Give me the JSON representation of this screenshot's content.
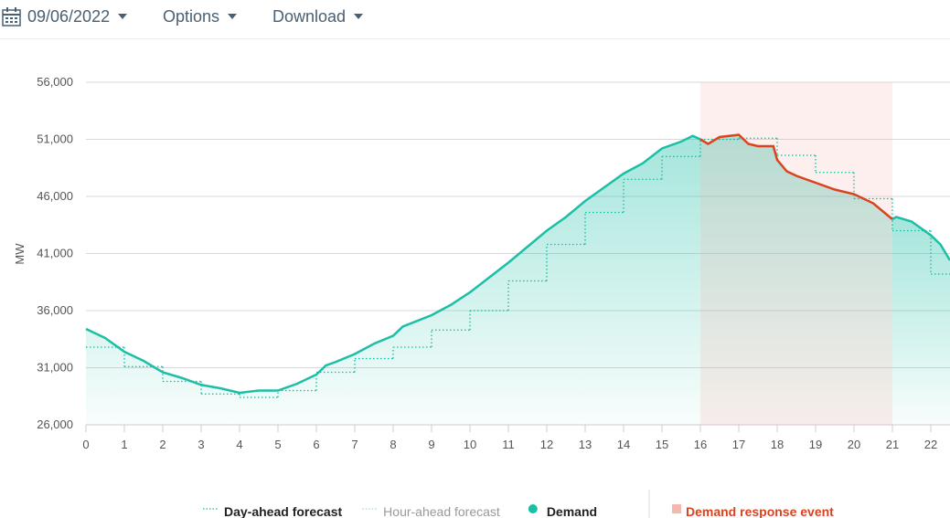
{
  "toolbar": {
    "date": "09/06/2022",
    "options": "Options",
    "download": "Download"
  },
  "chart_data": {
    "type": "line",
    "ylabel": "MW",
    "xlim": [
      0,
      22.5
    ],
    "xticks": [
      0,
      1,
      2,
      3,
      4,
      5,
      6,
      7,
      8,
      9,
      10,
      11,
      12,
      13,
      14,
      15,
      16,
      17,
      18,
      19,
      20,
      21,
      22
    ],
    "ylim": [
      26000,
      56000
    ],
    "yticks": [
      {
        "value": 26000,
        "label": "26,000"
      },
      {
        "value": 31000,
        "label": "31,000"
      },
      {
        "value": 36000,
        "label": "36,000"
      },
      {
        "value": 41000,
        "label": "41,000"
      },
      {
        "value": 46000,
        "label": "46,000"
      },
      {
        "value": 51000,
        "label": "51,000"
      },
      {
        "value": 56000,
        "label": "56,000"
      }
    ],
    "grid": true,
    "series": [
      {
        "name": "Day-ahead forecast",
        "color": "#1bb79e",
        "style": "dotted",
        "step": true,
        "x": [
          0,
          1,
          2,
          3,
          4,
          5,
          6,
          7,
          8,
          9,
          10,
          11,
          12,
          13,
          14,
          15,
          16,
          17,
          18,
          19,
          20,
          21,
          22
        ],
        "values": [
          32800,
          31100,
          29800,
          28700,
          28400,
          29000,
          30600,
          31800,
          32800,
          34300,
          36000,
          38600,
          41800,
          44600,
          47500,
          49500,
          51000,
          51100,
          49600,
          48100,
          45800,
          43000,
          39200
        ]
      },
      {
        "name": "Demand",
        "color": "#1cbfa6",
        "style": "solid",
        "area": true,
        "x": [
          0,
          0.5,
          1,
          1.5,
          2,
          2.5,
          3,
          3.5,
          4,
          4.5,
          5,
          5.5,
          6,
          6.25,
          6.5,
          7,
          7.5,
          8,
          8.25,
          9,
          9.5,
          10,
          10.5,
          11,
          11.5,
          12,
          12.5,
          13,
          13.5,
          14,
          14.5,
          15,
          15.5,
          15.8,
          16,
          16.2,
          16.5,
          17,
          17.25,
          17.5,
          17.9,
          18,
          18.25,
          18.5,
          19,
          19.5,
          20,
          20.5,
          21,
          21.1,
          21.5,
          22,
          22.25,
          22.5
        ],
        "values": [
          34400,
          33600,
          32400,
          31600,
          30600,
          30100,
          29500,
          29200,
          28800,
          29000,
          29000,
          29600,
          30400,
          31200,
          31500,
          32200,
          33100,
          33800,
          34600,
          35600,
          36500,
          37600,
          38900,
          40200,
          41600,
          43000,
          44200,
          45600,
          46800,
          48000,
          48900,
          50200,
          50800,
          51300,
          51000,
          null,
          null,
          null,
          null,
          null,
          null,
          null,
          null,
          null,
          null,
          null,
          null,
          null,
          44000,
          44200,
          43800,
          42600,
          41800,
          40400
        ]
      }
    ],
    "hidden_series": [
      {
        "name": "Hour-ahead forecast",
        "color": "#9fd9cf"
      }
    ],
    "event": {
      "name": "Demand response event",
      "color": "#d9431e",
      "band_color": "#f5b8ae",
      "start": 16,
      "end": 21,
      "x": [
        16,
        16.2,
        16.5,
        17,
        17.25,
        17.5,
        17.9,
        18,
        18.25,
        18.5,
        19,
        19.5,
        20,
        20.5,
        21
      ],
      "values": [
        51000,
        50600,
        51200,
        51400,
        50600,
        50400,
        50400,
        49200,
        48200,
        47800,
        47200,
        46600,
        46200,
        45400,
        44000
      ]
    }
  }
}
